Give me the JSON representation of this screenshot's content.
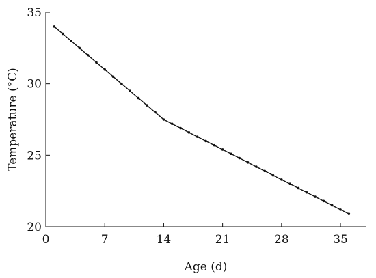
{
  "chart_data": {
    "type": "line",
    "xlabel": "Age (d)",
    "ylabel": "Temperature (°C)",
    "xlim": [
      0,
      38
    ],
    "ylim": [
      20,
      35
    ],
    "xticks": [
      0,
      7,
      14,
      21,
      28,
      35
    ],
    "yticks": [
      20,
      25,
      30,
      35
    ],
    "grid": false,
    "series": [
      {
        "x": [
          1,
          2,
          3,
          4,
          5,
          6,
          7,
          8,
          9,
          10,
          11,
          12,
          13,
          14,
          15,
          16,
          17,
          18,
          19,
          20,
          21,
          22,
          23,
          24,
          25,
          26,
          27,
          28,
          29,
          30,
          31,
          32,
          33,
          34,
          35,
          36
        ],
        "values": [
          34.0,
          33.5,
          33.0,
          32.5,
          32.0,
          31.5,
          31.0,
          30.5,
          30.0,
          29.5,
          29.0,
          28.5,
          28.0,
          27.5,
          27.2,
          26.9,
          26.6,
          26.3,
          26.0,
          25.7,
          25.4,
          25.1,
          24.8,
          24.5,
          24.2,
          23.9,
          23.6,
          23.3,
          23.0,
          22.7,
          22.4,
          22.1,
          21.8,
          21.5,
          21.2,
          20.9
        ]
      }
    ]
  }
}
